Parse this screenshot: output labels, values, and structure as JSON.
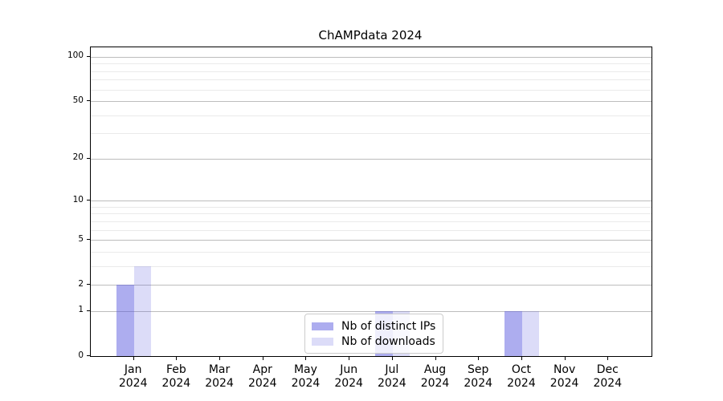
{
  "figure": {
    "background": "#ffffff",
    "spine_color": "#000000"
  },
  "chart_data": {
    "type": "bar",
    "title": "ChAMPdata 2024",
    "categories": [
      "Jan",
      "Feb",
      "Mar",
      "Apr",
      "May",
      "Jun",
      "Jul",
      "Aug",
      "Sep",
      "Oct",
      "Nov",
      "Dec"
    ],
    "category_year": "2024",
    "series": [
      {
        "name": "Nb of distinct IPs",
        "color": "rgba(80,80,220,0.47)",
        "values": [
          2,
          0,
          0,
          0,
          0,
          0,
          1,
          0,
          0,
          1,
          0,
          0
        ]
      },
      {
        "name": "Nb of downloads",
        "color": "rgba(80,80,220,0.20)",
        "values": [
          3,
          0,
          0,
          0,
          0,
          0,
          1,
          0,
          0,
          1,
          0,
          0
        ]
      }
    ],
    "xlabel": "",
    "ylabel": "",
    "y_axis": {
      "scale": "log1p",
      "major_ticks": [
        0,
        1,
        2,
        5,
        10,
        20,
        50,
        100
      ],
      "minor_ticks": [
        3,
        4,
        6,
        7,
        8,
        9,
        30,
        40,
        60,
        70,
        80,
        90
      ],
      "ylim": [
        0,
        116
      ]
    },
    "grid": {
      "orientation": "horizontal",
      "major_color": "#bdbdbd",
      "minor_color": "#eaeaea"
    },
    "legend": {
      "position": "lower center inside",
      "entries": [
        "Nb of distinct IPs",
        "Nb of downloads"
      ]
    }
  }
}
